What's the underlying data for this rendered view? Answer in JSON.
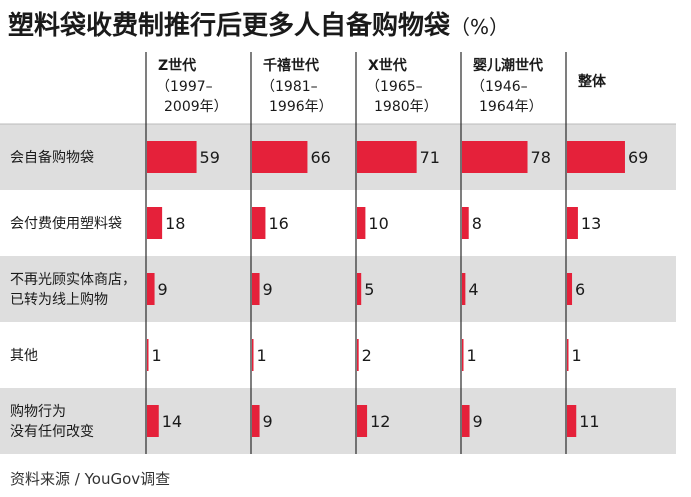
{
  "title": "塑料袋收费制推行后更多人自备购物袋",
  "unit": "（%）",
  "source": "资料来源 / YouGov调查",
  "colors": {
    "bar": "#e5213a",
    "band": "#dedede",
    "divider": "#2a2a2a"
  },
  "chart_data": {
    "type": "bar",
    "title": "塑料袋收费制推行后更多人自备购物袋",
    "unit": "%",
    "groups": [
      {
        "name": "Z世代",
        "years": [
          "（1997–",
          "2009年）"
        ]
      },
      {
        "name": "千禧世代",
        "years": [
          "（1981–",
          "1996年）"
        ]
      },
      {
        "name": "X世代",
        "years": [
          "（1965–",
          "1980年）"
        ]
      },
      {
        "name": "婴儿潮世代",
        "years": [
          "（1946–",
          "1964年）"
        ]
      },
      {
        "name": "整体",
        "years": []
      }
    ],
    "categories": [
      [
        "会自备购物袋"
      ],
      [
        "会付费使用塑料袋"
      ],
      [
        "不再光顾实体商店，",
        "已转为线上购物"
      ],
      [
        "其他"
      ],
      [
        "购物行为",
        "没有任何改变"
      ]
    ],
    "values": [
      [
        59,
        66,
        71,
        78,
        69
      ],
      [
        18,
        16,
        10,
        8,
        13
      ],
      [
        9,
        9,
        5,
        4,
        6
      ],
      [
        1,
        1,
        2,
        1,
        1
      ],
      [
        14,
        9,
        12,
        9,
        11
      ]
    ],
    "xlim": [
      0,
      100
    ],
    "shaded_rows": [
      0,
      2,
      4
    ]
  }
}
